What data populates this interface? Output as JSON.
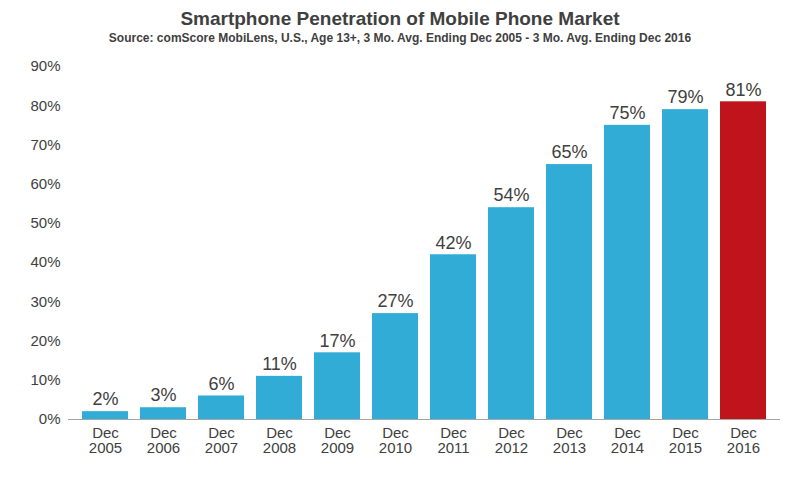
{
  "chart_data": {
    "type": "bar",
    "title": "Smartphone Penetration of Mobile Phone Market",
    "subtitle": "Source: comScore MobiLens, U.S., Age 13+, 3 Mo. Avg. Ending Dec 2005 - 3 Mo. Avg. Ending Dec 2016",
    "categories": [
      "Dec 2005",
      "Dec 2006",
      "Dec 2007",
      "Dec 2008",
      "Dec 2009",
      "Dec 2010",
      "Dec 2011",
      "Dec 2012",
      "Dec 2013",
      "Dec 2014",
      "Dec 2015",
      "Dec 2016"
    ],
    "values": [
      2,
      3,
      6,
      11,
      17,
      27,
      42,
      54,
      65,
      75,
      79,
      81
    ],
    "value_labels": [
      "2%",
      "3%",
      "6%",
      "11%",
      "17%",
      "27%",
      "42%",
      "54%",
      "65%",
      "75%",
      "79%",
      "81%"
    ],
    "colors": [
      "#31acd6",
      "#31acd6",
      "#31acd6",
      "#31acd6",
      "#31acd6",
      "#31acd6",
      "#31acd6",
      "#31acd6",
      "#31acd6",
      "#31acd6",
      "#31acd6",
      "#c0141c"
    ],
    "ylim": [
      0,
      90
    ],
    "yticks": [
      {
        "value": 0,
        "label": "0%"
      },
      {
        "value": 10,
        "label": "10%"
      },
      {
        "value": 20,
        "label": "20%"
      },
      {
        "value": 30,
        "label": "30%"
      },
      {
        "value": 40,
        "label": "40%"
      },
      {
        "value": 50,
        "label": "50%"
      },
      {
        "value": 60,
        "label": "60%"
      },
      {
        "value": 70,
        "label": "70%"
      },
      {
        "value": 80,
        "label": "80%"
      },
      {
        "value": 90,
        "label": "90%"
      }
    ],
    "grid": false,
    "data_labels": true
  }
}
